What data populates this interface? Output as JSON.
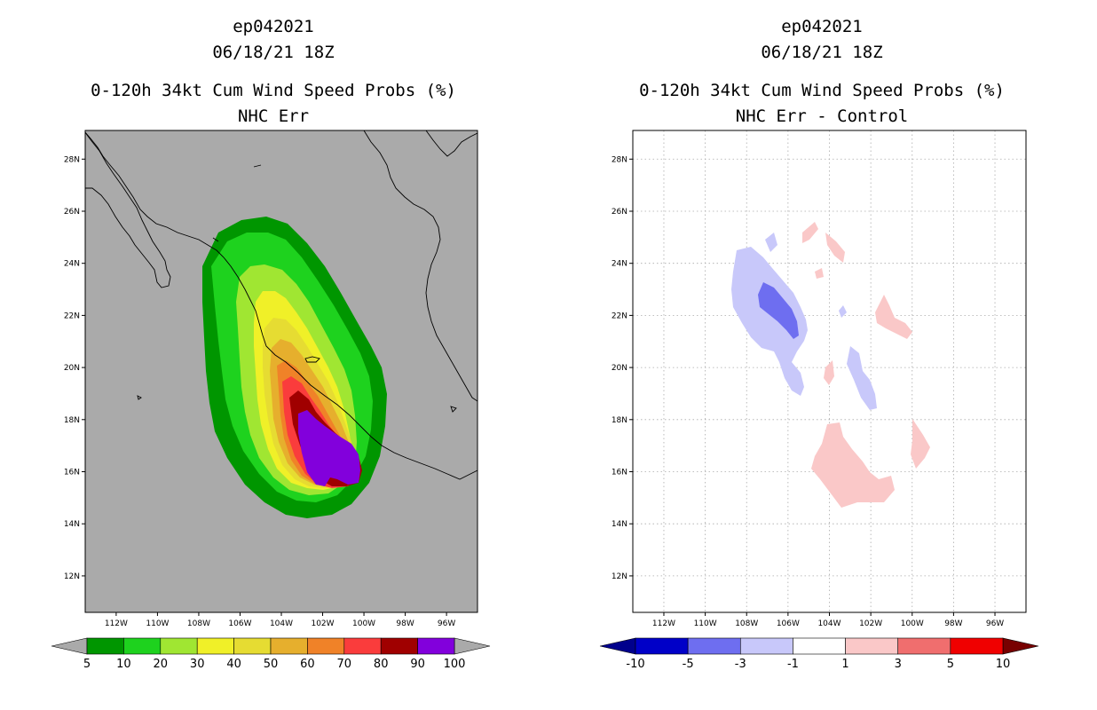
{
  "chart_data": [
    {
      "type": "heatmap",
      "title": [
        "ep042021",
        "06/18/21 18Z",
        "0-120h 34kt Cum Wind Speed Probs (%)",
        "NHC Err"
      ],
      "map_extent": {
        "lon": [
          -114,
          -95
        ],
        "lat": [
          10.5,
          29
        ]
      },
      "x_ticks": [
        "112W",
        "110W",
        "108W",
        "106W",
        "104W",
        "102W",
        "100W",
        "98W",
        "96W"
      ],
      "y_ticks": [
        "28N",
        "26N",
        "24N",
        "22N",
        "20N",
        "18N",
        "16N",
        "14N",
        "12N"
      ],
      "grid": false,
      "background": "#aaaaaa",
      "colorbar": {
        "labels": [
          "5",
          "10",
          "20",
          "30",
          "40",
          "50",
          "60",
          "70",
          "80",
          "90",
          "100"
        ],
        "colors": [
          "#009600",
          "#1ed21e",
          "#a0e632",
          "#f0f028",
          "#e6dc32",
          "#e6af2d",
          "#f08228",
          "#fa3c3c",
          "#a00000",
          "#8200dc"
        ],
        "end_color": "#aaaaaa"
      },
      "contour_levels": [
        5,
        10,
        20,
        30,
        40,
        50,
        60,
        70,
        80,
        90
      ]
    },
    {
      "type": "heatmap",
      "title": [
        "ep042021",
        "06/18/21 18Z",
        "0-120h 34kt Cum Wind Speed Probs (%)",
        "NHC Err - Control"
      ],
      "map_extent": {
        "lon": [
          -114,
          -95
        ],
        "lat": [
          10.5,
          29
        ]
      },
      "x_ticks": [
        "112W",
        "110W",
        "108W",
        "106W",
        "104W",
        "102W",
        "100W",
        "98W",
        "96W"
      ],
      "y_ticks": [
        "28N",
        "26N",
        "24N",
        "22N",
        "20N",
        "18N",
        "16N",
        "14N",
        "12N"
      ],
      "grid": true,
      "background": "#ffffff",
      "colorbar": {
        "labels": [
          "-10",
          "-5",
          "-3",
          "-1",
          "1",
          "3",
          "5",
          "10"
        ],
        "colors": [
          "#0000c8",
          "#6e6ef0",
          "#c8c8fa",
          "#ffffff",
          "#fac8c8",
          "#f06e6e",
          "#f00000"
        ],
        "end_colors": [
          "#00008c",
          "#780000"
        ]
      }
    }
  ]
}
